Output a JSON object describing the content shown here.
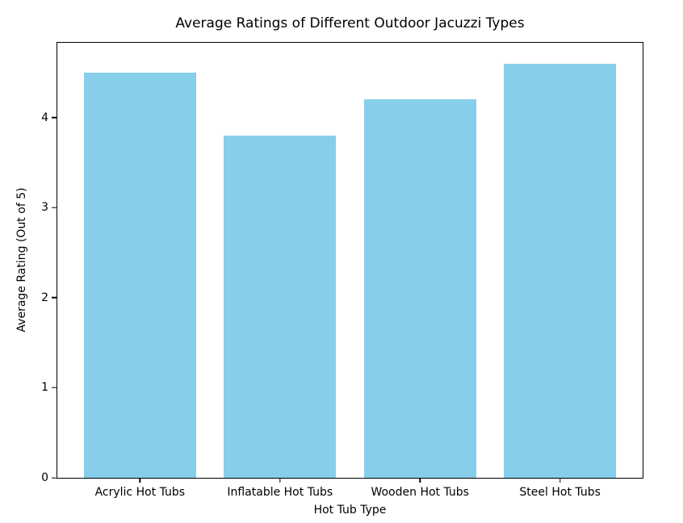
{
  "chart_data": {
    "type": "bar",
    "title": "Average Ratings of Different Outdoor Jacuzzi Types",
    "xlabel": "Hot Tub Type",
    "ylabel": "Average Rating (Out of 5)",
    "categories": [
      "Acrylic Hot Tubs",
      "Inflatable Hot Tubs",
      "Wooden Hot Tubs",
      "Steel Hot Tubs"
    ],
    "values": [
      4.5,
      3.8,
      4.2,
      4.6
    ],
    "ylim": [
      0,
      4.83
    ],
    "yticks": [
      0,
      1,
      2,
      3,
      4
    ],
    "bar_color": "#87CEEB",
    "bar_width_fraction": 0.8,
    "x_margin": 0.59,
    "grid": "off",
    "legend": "none",
    "background_color": "#ffffff",
    "spine_color": "#000000",
    "text_color": "#000000"
  }
}
